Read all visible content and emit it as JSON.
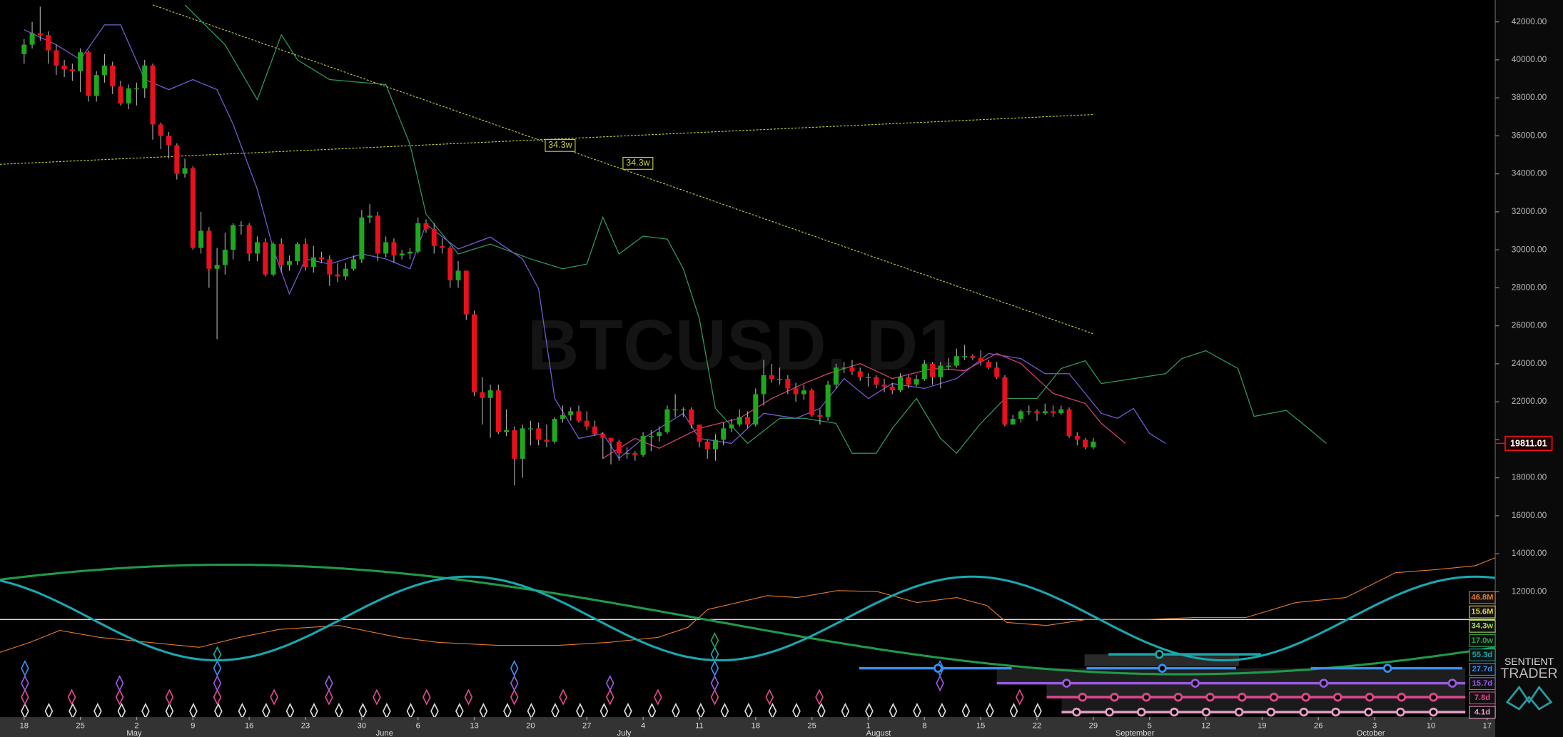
{
  "chart_data": {
    "type": "candlestick",
    "watermark": "BTCUSD, D1",
    "ylim": [
      5400,
      43150
    ],
    "yticks": [
      {
        "value": 42000,
        "label": "42000.00"
      },
      {
        "value": 40000,
        "label": "40000.00"
      },
      {
        "value": 38000,
        "label": "38000.00"
      },
      {
        "value": 36000,
        "label": "36000.00"
      },
      {
        "value": 34000,
        "label": "34000.00"
      },
      {
        "value": 32000,
        "label": "32000.00"
      },
      {
        "value": 30000,
        "label": "30000.00"
      },
      {
        "value": 28000,
        "label": "28000.00"
      },
      {
        "value": 26000,
        "label": "26000.00"
      },
      {
        "value": 24000,
        "label": "24000.00"
      },
      {
        "value": 22000,
        "label": "22000.00"
      },
      {
        "value": 20000,
        "label": "20000.00"
      },
      {
        "value": 18000,
        "label": "18000.00"
      },
      {
        "value": 16000,
        "label": "16000.00"
      },
      {
        "value": 14000,
        "label": "14000.00"
      },
      {
        "value": 12000,
        "label": "12000.00"
      }
    ],
    "xlim": [
      "04-15",
      "10-18"
    ],
    "xticks": [
      {
        "value": "04-18",
        "label": "18"
      },
      {
        "value": "04-25",
        "label": "25"
      },
      {
        "value": "05-02",
        "label": "2"
      },
      {
        "value": "05-09",
        "label": "9"
      },
      {
        "value": "05-16",
        "label": "16"
      },
      {
        "value": "05-23",
        "label": "23"
      },
      {
        "value": "05-30",
        "label": "30"
      },
      {
        "value": "06-06",
        "label": "6"
      },
      {
        "value": "06-13",
        "label": "13"
      },
      {
        "value": "06-20",
        "label": "20"
      },
      {
        "value": "06-27",
        "label": "27"
      },
      {
        "value": "07-04",
        "label": "4"
      },
      {
        "value": "07-11",
        "label": "11"
      },
      {
        "value": "07-18",
        "label": "18"
      },
      {
        "value": "07-25",
        "label": "25"
      },
      {
        "value": "08-01",
        "label": "1"
      },
      {
        "value": "08-08",
        "label": "8"
      },
      {
        "value": "08-15",
        "label": "15"
      },
      {
        "value": "08-22",
        "label": "22"
      },
      {
        "value": "08-29",
        "label": "29"
      },
      {
        "value": "09-05",
        "label": "5"
      },
      {
        "value": "09-12",
        "label": "12"
      },
      {
        "value": "09-19",
        "label": "19"
      },
      {
        "value": "09-26",
        "label": "26"
      },
      {
        "value": "10-03",
        "label": "3"
      },
      {
        "value": "10-10",
        "label": "10"
      },
      {
        "value": "10-17",
        "label": "17"
      }
    ],
    "xmonths": [
      {
        "value": "05-01",
        "label": "May"
      },
      {
        "value": "06-01",
        "label": "June"
      },
      {
        "value": "07-01",
        "label": "July"
      },
      {
        "value": "08-01",
        "label": "August"
      },
      {
        "value": "09-01",
        "label": "September"
      },
      {
        "value": "10-01",
        "label": "October"
      }
    ],
    "up_color": "#1ea81e",
    "down_color": "#e8101c",
    "candles": {
      "x": [
        "04-18",
        "04-19",
        "04-20",
        "04-21",
        "04-22",
        "04-23",
        "04-24",
        "04-25",
        "04-26",
        "04-27",
        "04-28",
        "04-29",
        "04-30",
        "05-01",
        "05-02",
        "05-03",
        "05-04",
        "05-05",
        "05-06",
        "05-07",
        "05-08",
        "05-09",
        "05-10",
        "05-11",
        "05-12",
        "05-13",
        "05-14",
        "05-15",
        "05-16",
        "05-17",
        "05-18",
        "05-19",
        "05-20",
        "05-21",
        "05-22",
        "05-23",
        "05-24",
        "05-25",
        "05-26",
        "05-27",
        "05-28",
        "05-29",
        "05-30",
        "05-31",
        "06-01",
        "06-02",
        "06-03",
        "06-04",
        "06-05",
        "06-06",
        "06-07",
        "06-08",
        "06-09",
        "06-10",
        "06-11",
        "06-12",
        "06-13",
        "06-14",
        "06-15",
        "06-16",
        "06-17",
        "06-18",
        "06-19",
        "06-20",
        "06-21",
        "06-22",
        "06-23",
        "06-24",
        "06-25",
        "06-26",
        "06-27",
        "06-28",
        "06-29",
        "06-30",
        "07-01",
        "07-02",
        "07-03",
        "07-04",
        "07-05",
        "07-06",
        "07-07",
        "07-08",
        "07-09",
        "07-10",
        "07-11",
        "07-12",
        "07-13",
        "07-14",
        "07-15",
        "07-16",
        "07-17",
        "07-18",
        "07-19",
        "07-20",
        "07-21",
        "07-22",
        "07-23",
        "07-24",
        "07-25",
        "07-26",
        "07-27",
        "07-28",
        "07-29",
        "07-30",
        "07-31",
        "08-01",
        "08-02",
        "08-03",
        "08-04",
        "08-05",
        "08-06",
        "08-07",
        "08-08",
        "08-09",
        "08-10",
        "08-11",
        "08-12",
        "08-13",
        "08-14",
        "08-15",
        "08-16",
        "08-17",
        "08-18",
        "08-19",
        "08-20",
        "08-21",
        "08-22",
        "08-23",
        "08-24",
        "08-25",
        "08-26",
        "08-27",
        "08-28",
        "08-29"
      ],
      "open": [
        40300,
        40800,
        41400,
        41300,
        40500,
        39700,
        39500,
        39400,
        40400,
        38100,
        39200,
        39700,
        38600,
        37700,
        38500,
        38500,
        39700,
        36600,
        36000,
        35500,
        34000,
        34300,
        30100,
        31000,
        29000,
        29200,
        30000,
        31300,
        31300,
        29800,
        30400,
        28700,
        30300,
        29200,
        29400,
        30300,
        29100,
        29600,
        29500,
        28700,
        28600,
        29000,
        29500,
        31700,
        31800,
        29800,
        30400,
        29700,
        29800,
        29900,
        31400,
        31100,
        30200,
        30100,
        28400,
        28900,
        26600,
        22500,
        22200,
        22600,
        20400,
        20500,
        19000,
        20600,
        20600,
        20000,
        19900,
        21100,
        21300,
        21500,
        21000,
        20700,
        20300,
        20100,
        19900,
        19300,
        19300,
        19200,
        20200,
        20200,
        20400,
        21600,
        21600,
        21600,
        20800,
        19900,
        19500,
        20000,
        20600,
        20800,
        21200,
        20800,
        22400,
        23400,
        23200,
        23200,
        22700,
        22400,
        22600,
        21300,
        21200,
        22900,
        23800,
        23800,
        23600,
        23300,
        23300,
        22900,
        22800,
        22600,
        23300,
        22900,
        23200,
        24000,
        23300,
        23900,
        23900,
        24400,
        24400,
        24300,
        24100,
        23800,
        23300,
        20800,
        21100,
        21500,
        21500,
        21400,
        21500,
        21400,
        21600,
        20200,
        20000,
        19600
      ],
      "high": [
        41100,
        42000,
        42800,
        41500,
        40800,
        40000,
        39800,
        40600,
        40500,
        39400,
        40300,
        39900,
        38900,
        38700,
        38800,
        40000,
        39800,
        36700,
        36200,
        35600,
        34800,
        34400,
        32000,
        31200,
        30100,
        30900,
        31400,
        31500,
        31400,
        30700,
        30600,
        30400,
        30600,
        29700,
        30400,
        30600,
        30200,
        29900,
        29700,
        29300,
        29300,
        29700,
        32100,
        32400,
        32000,
        30700,
        30600,
        30000,
        30100,
        31700,
        31600,
        31400,
        30600,
        30200,
        29400,
        28900,
        26800,
        23300,
        22900,
        22900,
        21600,
        20700,
        20800,
        21000,
        20900,
        20800,
        21200,
        21800,
        21700,
        21800,
        21500,
        21000,
        20400,
        20100,
        20000,
        19600,
        19400,
        20400,
        20500,
        20700,
        21800,
        22400,
        21700,
        21700,
        20800,
        20000,
        20300,
        20900,
        21100,
        21600,
        21500,
        22700,
        24200,
        24000,
        23800,
        23400,
        23000,
        22900,
        22700,
        21600,
        23100,
        24000,
        24100,
        24200,
        23800,
        23500,
        23400,
        23200,
        23000,
        23500,
        23400,
        23400,
        24200,
        24100,
        24100,
        24300,
        24800,
        25000,
        24500,
        24700,
        24200,
        24100,
        23400,
        21300,
        21600,
        21800,
        21600,
        21900,
        21800,
        21800,
        21700,
        20400,
        20100,
        20100
      ],
      "low": [
        39800,
        40600,
        41000,
        39800,
        39200,
        39100,
        38900,
        38300,
        37800,
        37800,
        38800,
        38200,
        37600,
        37400,
        37600,
        38000,
        35800,
        35300,
        34800,
        33700,
        33800,
        30000,
        29800,
        28000,
        25300,
        28700,
        29500,
        30800,
        29400,
        29400,
        28600,
        28600,
        28800,
        28900,
        29200,
        28900,
        28800,
        29300,
        28100,
        28300,
        28400,
        28900,
        29300,
        31400,
        29400,
        29600,
        29300,
        29500,
        29500,
        29800,
        30900,
        29800,
        29800,
        28000,
        28000,
        26300,
        22300,
        20800,
        20100,
        20300,
        20200,
        17600,
        18000,
        19700,
        19700,
        19600,
        19800,
        20900,
        21000,
        20900,
        20500,
        20200,
        19000,
        18700,
        18900,
        19000,
        18900,
        19100,
        19400,
        19900,
        20300,
        21200,
        21200,
        20600,
        19600,
        19000,
        18900,
        19700,
        20400,
        20700,
        20600,
        20700,
        21800,
        23000,
        22900,
        22400,
        22000,
        22100,
        21200,
        20800,
        21000,
        22700,
        23500,
        23400,
        23100,
        22800,
        22700,
        22500,
        22400,
        22500,
        22700,
        22800,
        23100,
        22900,
        22700,
        23700,
        23800,
        24200,
        24200,
        23900,
        23700,
        23200,
        20700,
        20800,
        20900,
        21300,
        21000,
        21300,
        21200,
        21300,
        20100,
        19700,
        19500,
        19500
      ],
      "close": [
        40800,
        41400,
        41300,
        40500,
        39700,
        39500,
        39400,
        40400,
        38100,
        39200,
        39700,
        38600,
        37700,
        38500,
        38500,
        39700,
        36600,
        36000,
        35500,
        34000,
        34300,
        30100,
        31000,
        29000,
        29200,
        30000,
        31300,
        31300,
        29800,
        30400,
        28700,
        30300,
        29200,
        29400,
        30300,
        29100,
        29600,
        29500,
        28700,
        28600,
        29000,
        29500,
        31700,
        31800,
        29800,
        30400,
        29700,
        29800,
        29900,
        31400,
        31100,
        30200,
        30100,
        28400,
        28900,
        26600,
        22500,
        22200,
        22600,
        20400,
        20500,
        19000,
        20600,
        20600,
        20000,
        19900,
        21100,
        21300,
        21500,
        21000,
        20700,
        20300,
        20100,
        19900,
        19300,
        19300,
        19200,
        20200,
        20200,
        20400,
        21600,
        21600,
        21600,
        20800,
        19900,
        19500,
        20000,
        20600,
        20800,
        21200,
        20800,
        22400,
        23400,
        23200,
        23200,
        22700,
        22400,
        22600,
        21300,
        21200,
        22900,
        23800,
        23800,
        23600,
        23300,
        23300,
        22900,
        22800,
        22600,
        23300,
        22900,
        23200,
        24000,
        23300,
        23900,
        23900,
        24400,
        24400,
        24300,
        24100,
        23800,
        23300,
        20800,
        21100,
        21500,
        21500,
        21400,
        21500,
        21400,
        21600,
        20200,
        20000,
        19600,
        19900
      ]
    },
    "lines": [
      {
        "color": "#2f9a5e",
        "x": [
          "05-08",
          "05-13",
          "05-17",
          "05-20",
          "05-22",
          "05-26",
          "06-02",
          "06-05",
          "06-07",
          "06-11",
          "06-15",
          "06-20",
          "06-24",
          "06-27",
          "06-29",
          "07-01",
          "07-04",
          "07-07",
          "07-09",
          "07-11",
          "07-13",
          "07-17",
          "07-21",
          "07-24",
          "07-28",
          "07-30",
          "08-02",
          "08-04",
          "08-07",
          "08-10",
          "08-12",
          "08-15",
          "08-18",
          "08-22",
          "08-25",
          "08-28",
          "08-30",
          "09-03",
          "09-07",
          "09-09",
          "09-12",
          "09-16",
          "09-18",
          "09-22",
          "09-24",
          "09-27"
        ],
        "values": [
          42890,
          40790,
          37900,
          41320,
          40000,
          38960,
          38700,
          35550,
          31880,
          29780,
          30300,
          29520,
          29000,
          29250,
          31720,
          29780,
          30720,
          30560,
          29000,
          26370,
          21650,
          19810,
          21130,
          21130,
          20860,
          19290,
          19290,
          20600,
          22170,
          20070,
          19290,
          20860,
          22170,
          22170,
          23750,
          24160,
          22960,
          23220,
          23480,
          24270,
          24690,
          23750,
          21230,
          21550,
          20860,
          19810
        ]
      },
      {
        "color": "#7a5ad8",
        "x": [
          "04-18",
          "04-22",
          "04-25",
          "04-28",
          "04-30",
          "05-03",
          "05-06",
          "05-09",
          "05-12",
          "05-14",
          "05-17",
          "05-19",
          "05-21",
          "05-23",
          "05-26",
          "05-30",
          "06-02",
          "06-05",
          "06-07",
          "06-11",
          "06-15",
          "06-19",
          "06-21",
          "06-23",
          "06-26",
          "06-29",
          "07-01",
          "07-04",
          "07-06",
          "07-09",
          "07-11",
          "07-15",
          "07-19",
          "07-23",
          "07-26",
          "07-29",
          "08-01",
          "08-04",
          "08-08",
          "08-12",
          "08-16",
          "08-20",
          "08-23",
          "08-26",
          "08-30",
          "09-01",
          "09-03",
          "09-05",
          "09-07"
        ],
        "values": [
          41580,
          40790,
          40010,
          41840,
          41840,
          38960,
          38430,
          38960,
          38430,
          36600,
          33190,
          30040,
          27680,
          29520,
          29250,
          29780,
          29520,
          29000,
          31350,
          30040,
          30670,
          29520,
          27950,
          22170,
          20070,
          20330,
          19020,
          20070,
          20600,
          21390,
          20070,
          19810,
          21390,
          21130,
          21650,
          23220,
          22170,
          22960,
          22700,
          23220,
          24540,
          24270,
          23480,
          23480,
          21390,
          21130,
          21650,
          20330,
          19810
        ]
      },
      {
        "color": "#d0407a",
        "x": [
          "06-29",
          "07-03",
          "07-06",
          "07-11",
          "07-16",
          "07-20",
          "07-24",
          "07-27",
          "07-31",
          "08-04",
          "08-09",
          "08-13",
          "08-17",
          "08-20",
          "08-24",
          "08-28",
          "08-30",
          "09-02"
        ],
        "values": [
          19020,
          20070,
          19550,
          20600,
          21130,
          22170,
          22960,
          23480,
          24010,
          23220,
          23750,
          23640,
          24540,
          24010,
          22440,
          21910,
          20860,
          19810
        ]
      }
    ],
    "trendlines": [
      {
        "color": "#c8d040",
        "x": [
          "04-15",
          "08-29"
        ],
        "values": [
          34500,
          37120
        ]
      },
      {
        "color": "#c8d040",
        "x": [
          "05-04",
          "08-29"
        ],
        "values": [
          42890,
          25580
        ]
      }
    ],
    "annotations": [
      "34.3w",
      "34.3w"
    ],
    "last_price": 19811.01,
    "cycles": [
      {
        "label": "46.8M",
        "color": "#e07a2c"
      },
      {
        "label": "15.6M",
        "color": "#e0d040"
      },
      {
        "label": "34.3w",
        "color": "#a8d858"
      },
      {
        "label": "17.0w",
        "color": "#2ea04a"
      },
      {
        "label": "55.3d",
        "color": "#1aa8a8"
      },
      {
        "label": "27.7d",
        "color": "#3a8ef0"
      },
      {
        "label": "15.7d",
        "color": "#9a5ae0"
      },
      {
        "label": "7.8d",
        "color": "#e04890"
      },
      {
        "label": "4.1d",
        "color": "#e8a0c8"
      }
    ],
    "logo": [
      "SENTIENT",
      "TRADER"
    ]
  }
}
